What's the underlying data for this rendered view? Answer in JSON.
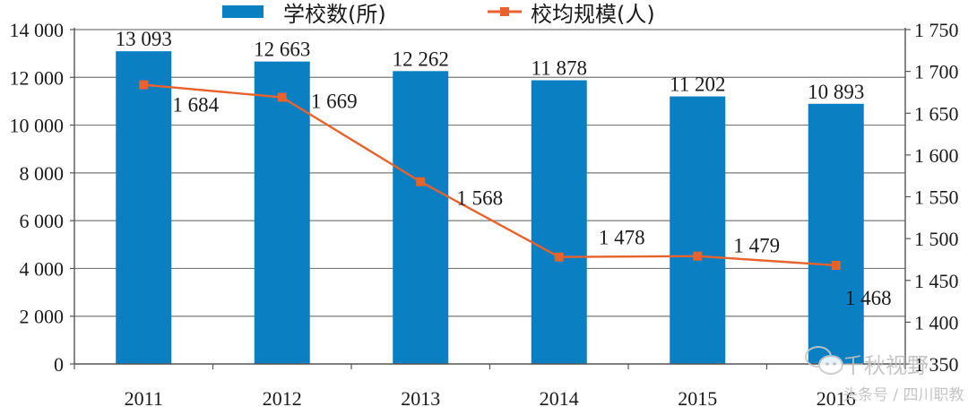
{
  "chart_data": {
    "type": "bar+line",
    "title": "",
    "categories": [
      "2011",
      "2012",
      "2013",
      "2014",
      "2015",
      "2016"
    ],
    "series": [
      {
        "name": "学校数(所)",
        "type": "bar",
        "axis": "left",
        "color": "#0a7fc2",
        "values": [
          13093,
          12663,
          12262,
          11878,
          11202,
          10893
        ],
        "labels": [
          "13 093",
          "12 663",
          "12 262",
          "11 878",
          "11 202",
          "10 893"
        ]
      },
      {
        "name": "校均规模(人)",
        "type": "line",
        "axis": "right",
        "color": "#e8622c",
        "values": [
          1684,
          1669,
          1568,
          1478,
          1479,
          1468
        ],
        "labels": [
          "1 684",
          "1 669",
          "1 568",
          "1 478",
          "1 479",
          "1 468"
        ]
      }
    ],
    "left_axis": {
      "ylim": [
        0,
        14000
      ],
      "ticks": [
        "0",
        "2 000",
        "4 000",
        "6 000",
        "8 000",
        "10 000",
        "12 000",
        "14 000"
      ]
    },
    "right_axis": {
      "ylim": [
        1350,
        1750
      ],
      "ticks": [
        "1 350",
        "1 400",
        "1 450",
        "1 500",
        "1 550",
        "1 600",
        "1 650",
        "1 700",
        "1 750"
      ]
    },
    "xlabel": "",
    "ylabel": "",
    "grid": true,
    "legend_position": "top"
  },
  "legend": {
    "bar_label": "学校数(所)",
    "line_label": "校均规模(人)"
  },
  "watermark": {
    "title": "千秋视野",
    "subtitle": "头条号 / 四川职教"
  }
}
